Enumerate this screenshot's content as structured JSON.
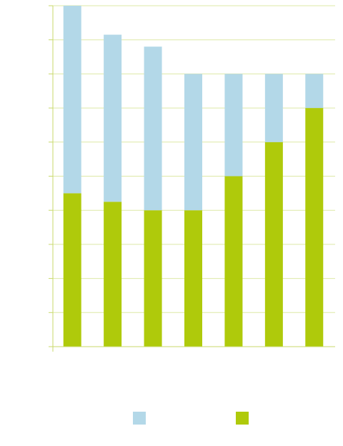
{
  "chart_data": {
    "type": "bar",
    "stacked": true,
    "title": "",
    "xlabel": "",
    "ylabel": "",
    "categories": [
      "",
      "",
      "",
      "",
      "",
      "",
      ""
    ],
    "ylim": [
      0,
      10
    ],
    "grid": true,
    "legend_position": "bottom",
    "series": [
      {
        "color": "#afca0b",
        "values": [
          4.5,
          4.25,
          4.0,
          4.0,
          5.0,
          6.0,
          7.0
        ]
      },
      {
        "color": "#b3d8e8",
        "values": [
          5.5,
          4.9,
          4.8,
          4.0,
          3.0,
          2.0,
          1.0
        ]
      }
    ],
    "legend": [
      {
        "color": "#b3d8e8"
      },
      {
        "color": "#afca0b"
      }
    ],
    "axis_color": "#c8d96a",
    "grid_color": "#dde9a6"
  }
}
